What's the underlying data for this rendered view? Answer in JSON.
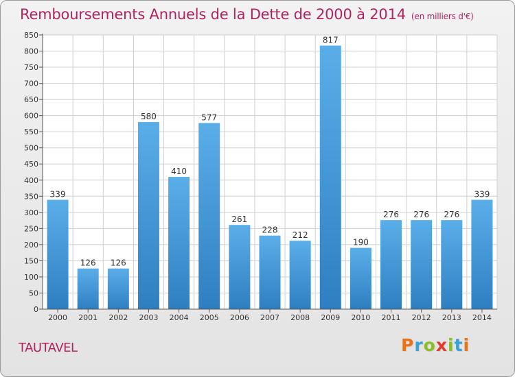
{
  "title": "Remboursements Annuels de la Dette de 2000 à 2014",
  "unit_label": "(en milliers d'€)",
  "commune": "TAUTAVEL",
  "logo": {
    "letters": [
      "P",
      "r",
      "o",
      "x",
      "i",
      "t",
      "i"
    ],
    "colors": [
      "#e8731b",
      "#3aa0d8",
      "#8bbd29",
      "#e23b2e",
      "#8bbd29",
      "#3aa0d8",
      "#e8731b"
    ]
  },
  "colors": {
    "title": "#b0245f",
    "bar_top": "#5aaee8",
    "bar_bottom": "#2e7fc1",
    "grid": "#cfcfcf"
  },
  "chart_data": {
    "type": "bar",
    "title": "Remboursements Annuels de la Dette de 2000 à 2014",
    "ylabel": "en milliers d'€",
    "categories": [
      "2000",
      "2001",
      "2002",
      "2003",
      "2004",
      "2005",
      "2006",
      "2007",
      "2008",
      "2009",
      "2010",
      "2011",
      "2012",
      "2013",
      "2014"
    ],
    "values": [
      339,
      126,
      126,
      580,
      410,
      577,
      261,
      228,
      212,
      817,
      190,
      276,
      276,
      276,
      339
    ],
    "ylim": [
      0,
      850
    ],
    "yticks": [
      0,
      50,
      100,
      150,
      200,
      250,
      300,
      350,
      400,
      450,
      500,
      550,
      600,
      650,
      700,
      750,
      800,
      850
    ],
    "grid": true
  }
}
